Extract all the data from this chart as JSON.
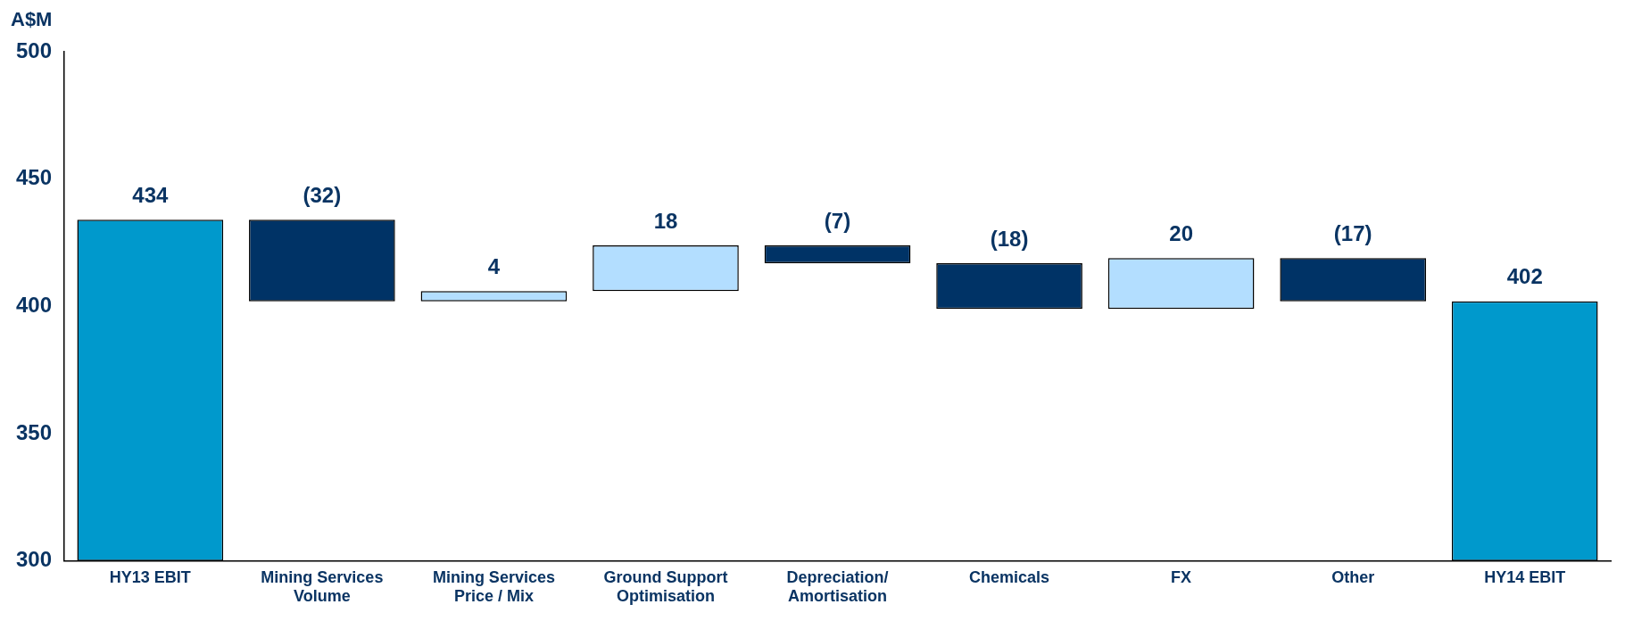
{
  "chart_data": {
    "type": "bar",
    "ylabel": "A$M",
    "categories": [
      "HY13 EBIT",
      "Mining Services Volume",
      "Mining Services Price / Mix",
      "Ground Support Optimisation",
      "Depreciation/ Amortisation",
      "Chemicals",
      "FX",
      "Other",
      "HY14 EBIT"
    ],
    "base": [
      300,
      434,
      402,
      406,
      424,
      417,
      399,
      419,
      300
    ],
    "values": [
      134,
      -32,
      4,
      18,
      -7,
      -18,
      20,
      -17,
      102
    ],
    "value_labels": [
      "434",
      "(32)",
      "4",
      "18",
      "(7)",
      "(18)",
      "20",
      "(17)",
      "402"
    ],
    "colors": [
      "#0099cc",
      "#003366",
      "#b3deff",
      "#b3deff",
      "#003366",
      "#003366",
      "#b3deff",
      "#003366",
      "#0099cc"
    ],
    "ylim": [
      300,
      500
    ],
    "yticks": [
      300,
      350,
      400,
      450,
      500
    ]
  }
}
